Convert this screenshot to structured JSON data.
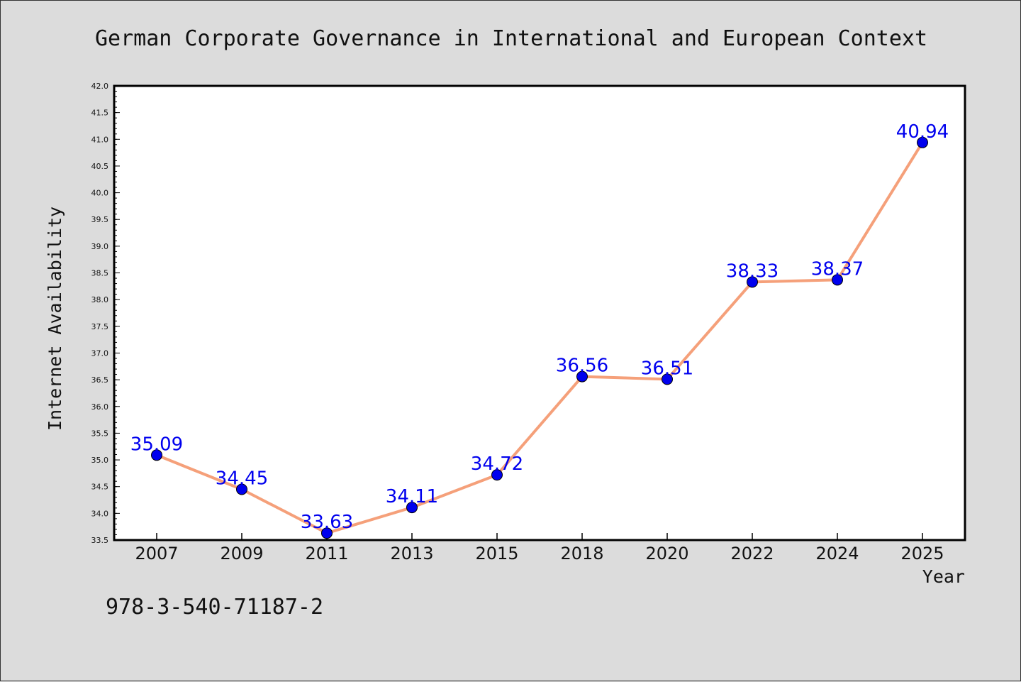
{
  "chart_data": {
    "type": "line",
    "title": "German Corporate Governance in International and European Context",
    "xlabel": "Year",
    "ylabel": "Internet Availability",
    "categories": [
      "2007",
      "2009",
      "2011",
      "2013",
      "2015",
      "2018",
      "2020",
      "2022",
      "2024",
      "2025"
    ],
    "series": [
      {
        "values": [
          35.09,
          34.45,
          33.63,
          34.11,
          34.72,
          36.56,
          36.51,
          38.33,
          38.37,
          40.94
        ],
        "line_color": "#f5a07a",
        "marker_color": "#0000ee"
      }
    ],
    "ylim": [
      33.5,
      42.0
    ],
    "yticks": [
      "33.5",
      "34.0",
      "34.5",
      "35.0",
      "35.5",
      "36.0",
      "36.5",
      "37.0",
      "37.5",
      "38.0",
      "38.5",
      "39.0",
      "39.5",
      "40.0",
      "40.5",
      "41.0",
      "41.5",
      "42.0"
    ],
    "data_labels": [
      "35.09",
      "34.45",
      "33.63",
      "34.11",
      "34.72",
      "36.56",
      "36.51",
      "38.33",
      "38.37",
      "40.94"
    ],
    "grid": false,
    "legend": "none",
    "plot_background": "#ffffff",
    "page_background": "#dcdcdc"
  },
  "footer": {
    "isbn": "978-3-540-71187-2"
  }
}
